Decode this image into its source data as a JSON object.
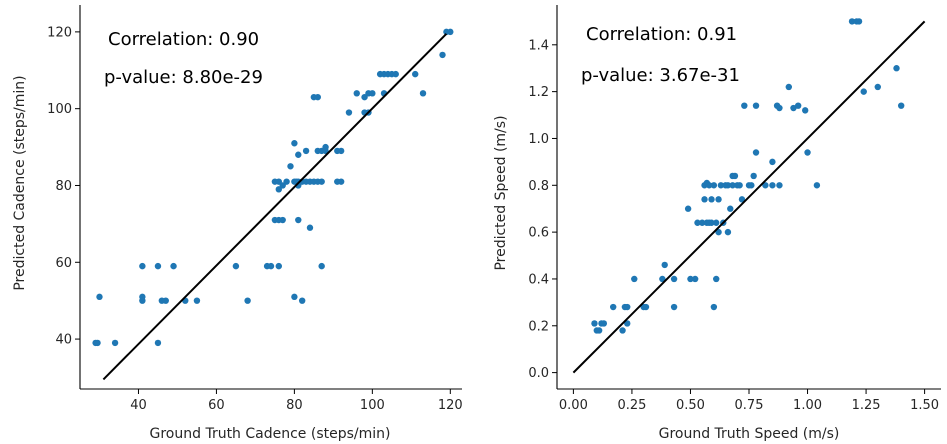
{
  "chart_data": [
    {
      "type": "scatter",
      "title": "",
      "xlabel": "Ground Truth Cadence (steps/min)",
      "ylabel": "Predicted Cadence (steps/min)",
      "xlim": [
        25,
        123
      ],
      "ylim": [
        27,
        127
      ],
      "xticks": [
        40,
        60,
        80,
        100,
        120
      ],
      "yticks": [
        40,
        60,
        80,
        100,
        120
      ],
      "xtick_labels": [
        "40",
        "60",
        "80",
        "100",
        "120"
      ],
      "ytick_labels": [
        "40",
        "60",
        "80",
        "100",
        "120"
      ],
      "annotations": [
        "Correlation: 0.90",
        "p-value: 8.80e-29"
      ],
      "grid": false,
      "point_color": "#1f77b4",
      "fit_line": {
        "x": [
          31,
          119
        ],
        "y": [
          29.5,
          119.5
        ],
        "color": "#000000"
      },
      "points": [
        [
          29,
          39
        ],
        [
          29.5,
          39
        ],
        [
          30,
          51
        ],
        [
          34,
          39
        ],
        [
          41,
          59
        ],
        [
          41,
          51
        ],
        [
          41,
          50
        ],
        [
          45,
          59
        ],
        [
          45,
          39
        ],
        [
          46,
          50
        ],
        [
          47,
          50
        ],
        [
          49,
          59
        ],
        [
          52,
          50
        ],
        [
          55,
          50
        ],
        [
          65,
          59
        ],
        [
          68,
          50
        ],
        [
          73,
          59
        ],
        [
          74,
          59
        ],
        [
          75,
          71
        ],
        [
          75,
          81
        ],
        [
          76,
          71
        ],
        [
          76,
          79
        ],
        [
          76,
          81
        ],
        [
          76,
          59
        ],
        [
          77,
          80
        ],
        [
          77,
          71
        ],
        [
          78,
          81
        ],
        [
          79,
          85
        ],
        [
          80,
          81
        ],
        [
          80,
          51
        ],
        [
          80,
          91
        ],
        [
          80.5,
          81
        ],
        [
          81,
          81
        ],
        [
          81,
          71
        ],
        [
          81,
          80
        ],
        [
          81,
          88
        ],
        [
          82,
          50
        ],
        [
          82,
          81
        ],
        [
          83,
          81
        ],
        [
          83,
          89
        ],
        [
          84,
          69
        ],
        [
          84,
          81
        ],
        [
          85,
          81
        ],
        [
          85,
          103
        ],
        [
          86,
          103
        ],
        [
          86,
          81
        ],
        [
          86,
          89
        ],
        [
          87,
          89
        ],
        [
          87,
          81
        ],
        [
          87,
          59
        ],
        [
          88,
          89
        ],
        [
          88,
          90
        ],
        [
          91,
          89
        ],
        [
          91,
          81
        ],
        [
          92,
          89
        ],
        [
          92,
          81
        ],
        [
          94,
          99
        ],
        [
          96,
          104
        ],
        [
          98,
          99
        ],
        [
          98,
          103
        ],
        [
          99,
          104
        ],
        [
          99,
          99
        ],
        [
          100,
          104
        ],
        [
          102,
          109
        ],
        [
          103,
          109
        ],
        [
          103,
          104
        ],
        [
          104,
          109
        ],
        [
          105,
          109
        ],
        [
          106,
          109
        ],
        [
          111,
          109
        ],
        [
          113,
          104
        ],
        [
          118,
          114
        ],
        [
          119,
          120
        ],
        [
          120,
          120
        ]
      ]
    },
    {
      "type": "scatter",
      "title": "",
      "xlabel": "Ground Truth Speed (m/s)",
      "ylabel": "Predicted Speed (m/s)",
      "xlim": [
        -0.07,
        1.57
      ],
      "ylim": [
        -0.07,
        1.57
      ],
      "xticks": [
        0.0,
        0.25,
        0.5,
        0.75,
        1.0,
        1.25,
        1.5
      ],
      "yticks": [
        0.0,
        0.2,
        0.4,
        0.6,
        0.8,
        1.0,
        1.2,
        1.4
      ],
      "xtick_labels": [
        "0.00",
        "0.25",
        "0.50",
        "0.75",
        "1.00",
        "1.25",
        "1.50"
      ],
      "ytick_labels": [
        "0.0",
        "0.2",
        "0.4",
        "0.6",
        "0.8",
        "1.0",
        "1.2",
        "1.4"
      ],
      "annotations": [
        "Correlation: 0.91",
        "p-value: 3.67e-31"
      ],
      "grid": false,
      "point_color": "#1f77b4",
      "fit_line": {
        "x": [
          0.0,
          1.5
        ],
        "y": [
          0.0,
          1.5
        ],
        "color": "#000000"
      },
      "points": [
        [
          0.09,
          0.21
        ],
        [
          0.1,
          0.18
        ],
        [
          0.11,
          0.18
        ],
        [
          0.12,
          0.21
        ],
        [
          0.13,
          0.21
        ],
        [
          0.17,
          0.28
        ],
        [
          0.21,
          0.18
        ],
        [
          0.22,
          0.28
        ],
        [
          0.23,
          0.28
        ],
        [
          0.23,
          0.21
        ],
        [
          0.26,
          0.4
        ],
        [
          0.3,
          0.28
        ],
        [
          0.31,
          0.28
        ],
        [
          0.38,
          0.4
        ],
        [
          0.39,
          0.46
        ],
        [
          0.43,
          0.28
        ],
        [
          0.43,
          0.4
        ],
        [
          0.49,
          0.7
        ],
        [
          0.5,
          0.4
        ],
        [
          0.52,
          0.4
        ],
        [
          0.53,
          0.64
        ],
        [
          0.55,
          0.64
        ],
        [
          0.56,
          0.74
        ],
        [
          0.56,
          0.8
        ],
        [
          0.57,
          0.81
        ],
        [
          0.57,
          0.64
        ],
        [
          0.58,
          0.8
        ],
        [
          0.58,
          0.64
        ],
        [
          0.59,
          0.74
        ],
        [
          0.59,
          0.64
        ],
        [
          0.6,
          0.8
        ],
        [
          0.6,
          0.28
        ],
        [
          0.61,
          0.4
        ],
        [
          0.61,
          0.64
        ],
        [
          0.62,
          0.74
        ],
        [
          0.62,
          0.6
        ],
        [
          0.63,
          0.8
        ],
        [
          0.64,
          0.64
        ],
        [
          0.65,
          0.8
        ],
        [
          0.66,
          0.8
        ],
        [
          0.66,
          0.6
        ],
        [
          0.67,
          0.7
        ],
        [
          0.68,
          0.8
        ],
        [
          0.68,
          0.84
        ],
        [
          0.69,
          0.84
        ],
        [
          0.7,
          0.8
        ],
        [
          0.71,
          0.8
        ],
        [
          0.72,
          0.74
        ],
        [
          0.73,
          1.14
        ],
        [
          0.75,
          0.8
        ],
        [
          0.76,
          0.8
        ],
        [
          0.77,
          0.84
        ],
        [
          0.78,
          1.14
        ],
        [
          0.78,
          0.94
        ],
        [
          0.82,
          0.8
        ],
        [
          0.85,
          0.9
        ],
        [
          0.85,
          0.8
        ],
        [
          0.87,
          1.14
        ],
        [
          0.88,
          1.13
        ],
        [
          0.88,
          0.8
        ],
        [
          0.92,
          1.22
        ],
        [
          0.94,
          1.13
        ],
        [
          0.96,
          1.14
        ],
        [
          0.99,
          1.12
        ],
        [
          1.0,
          0.94
        ],
        [
          1.04,
          0.8
        ],
        [
          1.19,
          1.5
        ],
        [
          1.21,
          1.5
        ],
        [
          1.22,
          1.5
        ],
        [
          1.24,
          1.2
        ],
        [
          1.3,
          1.22
        ],
        [
          1.38,
          1.3
        ],
        [
          1.4,
          1.14
        ]
      ]
    }
  ]
}
